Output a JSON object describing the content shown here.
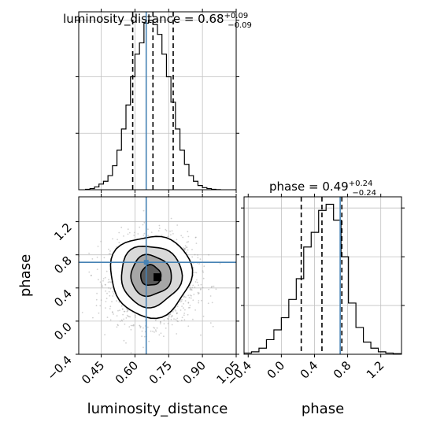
{
  "chart_data": {
    "type": "corner",
    "parameters": [
      "luminosity_distance",
      "phase"
    ],
    "truth": {
      "luminosity_distance": 0.65,
      "phase": 0.71
    },
    "colors": {
      "truth": "#4682b4",
      "hist": "#000000",
      "grid": "#c0c0c0",
      "scatter": "#999999"
    },
    "grid": true,
    "luminosity_distance": {
      "title_main": "luminosity_distance = 0.68",
      "title_plus": "+0.09",
      "title_minus": "−0.09",
      "quantiles": [
        0.59,
        0.68,
        0.77
      ],
      "xlim": [
        0.35,
        1.05
      ],
      "ticks": [
        0.45,
        0.6,
        0.75,
        0.9,
        1.05
      ],
      "tick_labels": [
        "0.45",
        "0.60",
        "0.75",
        "0.90",
        "1.05"
      ],
      "hist_edges": [
        0.38,
        0.4,
        0.42,
        0.44,
        0.46,
        0.48,
        0.5,
        0.52,
        0.54,
        0.56,
        0.58,
        0.6,
        0.62,
        0.64,
        0.66,
        0.68,
        0.7,
        0.72,
        0.74,
        0.76,
        0.78,
        0.8,
        0.82,
        0.84,
        0.86,
        0.88,
        0.9,
        0.92,
        0.94,
        0.96,
        0.98
      ],
      "hist_counts": [
        0.3,
        0.8,
        2,
        4,
        6,
        10,
        17,
        28,
        43,
        60,
        80,
        96,
        104,
        118,
        120,
        117,
        110,
        96,
        80,
        62,
        43,
        28,
        18,
        10,
        6,
        3,
        1.5,
        0.8,
        0.3,
        0.1
      ]
    },
    "phase": {
      "title_main": "phase = 0.49",
      "title_plus": "+0.24",
      "title_minus": "−0.24",
      "quantiles": [
        0.24,
        0.49,
        0.73
      ],
      "xlim": [
        -0.45,
        1.45
      ],
      "ylim": [
        -0.4,
        1.5
      ],
      "ticks": [
        -0.4,
        0.0,
        0.4,
        0.8,
        1.2
      ],
      "tick_labels": [
        "−0.4",
        "0.0",
        "0.4",
        "0.8",
        "1.2"
      ],
      "hist_edges": [
        -0.45,
        -0.36,
        -0.27,
        -0.18,
        -0.09,
        0.0,
        0.09,
        0.18,
        0.27,
        0.36,
        0.45,
        0.54,
        0.63,
        0.72,
        0.81,
        0.9,
        0.99,
        1.08,
        1.17,
        1.26,
        1.35,
        1.44
      ],
      "hist_counts": [
        1,
        2,
        5,
        12,
        20,
        30,
        45,
        62,
        88,
        100,
        118,
        123,
        110,
        80,
        42,
        22,
        10,
        5,
        2,
        1,
        0.5
      ]
    },
    "xlabel_left": "luminosity_distance",
    "xlabel_right": "phase",
    "ylabel_left": "phase"
  }
}
